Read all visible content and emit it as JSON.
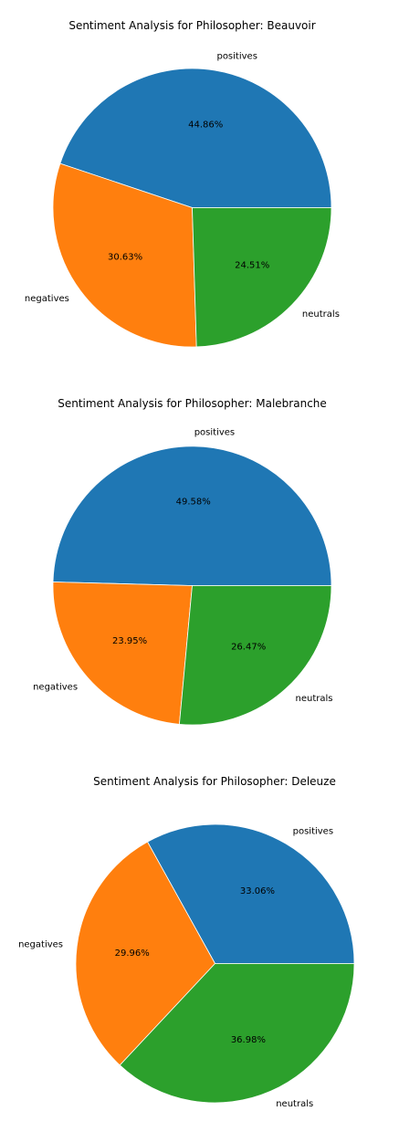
{
  "chart_data": [
    {
      "type": "pie",
      "title": "Sentiment Analysis for  Philosopher: Beauvoir",
      "categories": [
        "positives",
        "negatives",
        "neutrals"
      ],
      "values": [
        44.86,
        30.63,
        24.51
      ],
      "value_labels": [
        "44.86%",
        "30.63%",
        "24.51%"
      ],
      "colors": [
        "#1f77b4",
        "#ff7f0e",
        "#2ca02c"
      ],
      "start_angle_deg": 0,
      "direction": "counterclockwise"
    },
    {
      "type": "pie",
      "title": "Sentiment Analysis for  Philosopher: Malebranche",
      "categories": [
        "positives",
        "negatives",
        "neutrals"
      ],
      "values": [
        49.58,
        23.95,
        26.47
      ],
      "value_labels": [
        "49.58%",
        "23.95%",
        "26.47%"
      ],
      "colors": [
        "#1f77b4",
        "#ff7f0e",
        "#2ca02c"
      ],
      "start_angle_deg": 0,
      "direction": "counterclockwise"
    },
    {
      "type": "pie",
      "title": "Sentiment Analysis for  Philosopher: Deleuze",
      "categories": [
        "positives",
        "negatives",
        "neutrals"
      ],
      "values": [
        33.06,
        29.96,
        36.98
      ],
      "value_labels": [
        "33.06%",
        "29.96%",
        "36.98%"
      ],
      "colors": [
        "#1f77b4",
        "#ff7f0e",
        "#2ca02c"
      ],
      "start_angle_deg": 0,
      "direction": "counterclockwise"
    }
  ]
}
